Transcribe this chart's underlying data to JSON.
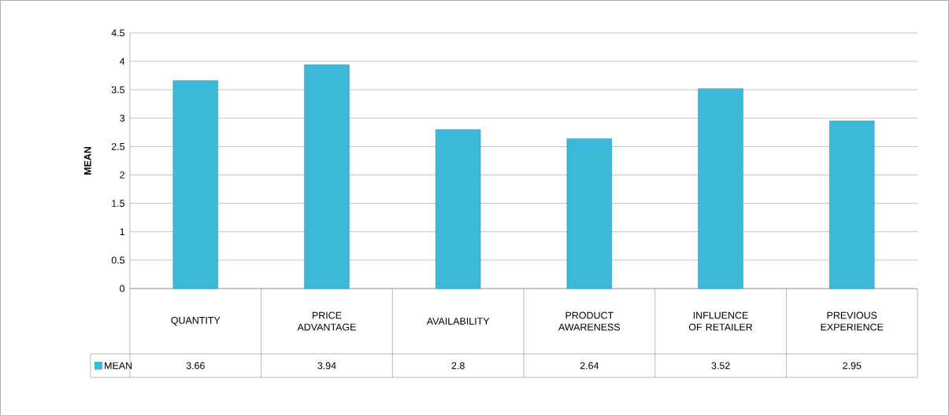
{
  "chart_data": {
    "type": "bar",
    "ylabel": "MEAN",
    "categories": [
      "QUANTITY",
      "PRICE ADVANTAGE",
      "AVAILABILITY",
      "PRODUCT AWARENESS",
      "INFLUENCE OF RETAILER",
      "PREVIOUS EXPERIENCE"
    ],
    "series": [
      {
        "name": "MEAN",
        "color": "#3cb9d9",
        "values": [
          3.66,
          3.94,
          2.8,
          2.64,
          3.52,
          2.95
        ]
      }
    ],
    "ylim": [
      0,
      4.5
    ],
    "yticks": [
      0,
      0.5,
      1,
      1.5,
      2,
      2.5,
      3,
      3.5,
      4,
      4.5
    ],
    "grid": "y",
    "legend": "bottom left",
    "data_labels": true
  }
}
